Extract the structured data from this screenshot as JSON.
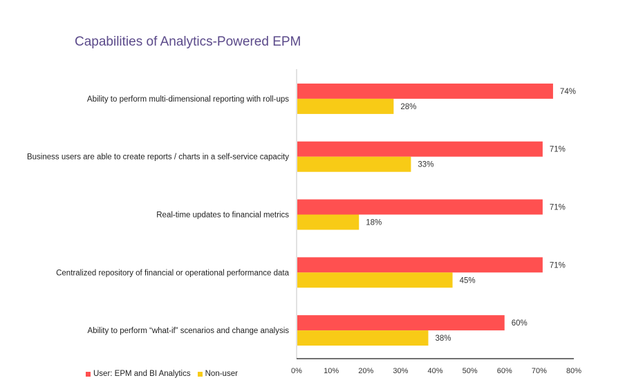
{
  "chart_data": {
    "type": "bar",
    "orientation": "horizontal",
    "title": "Capabilities of Analytics-Powered EPM",
    "xlabel": "",
    "ylabel": "",
    "xlim": [
      0,
      80
    ],
    "x_ticks": [
      "0%",
      "10%",
      "20%",
      "30%",
      "40%",
      "50%",
      "60%",
      "70%",
      "80%"
    ],
    "value_format": "percent",
    "grid": false,
    "legend_position": "bottom-left",
    "categories": [
      "Ability to perform multi-dimensional reporting with roll-ups",
      "Business users are able to create reports / charts in a self-service capacity",
      "Real-time updates to financial metrics",
      "Centralized repository of financial or operational performance data",
      "Ability to perform “what-if” scenarios and change analysis"
    ],
    "series": [
      {
        "name": "User: EPM and BI Analytics",
        "color": "#ff5050",
        "values": [
          74,
          71,
          71,
          71,
          60
        ]
      },
      {
        "name": "Non-user",
        "color": "#f8cb16",
        "values": [
          28,
          33,
          18,
          45,
          38
        ]
      }
    ]
  }
}
